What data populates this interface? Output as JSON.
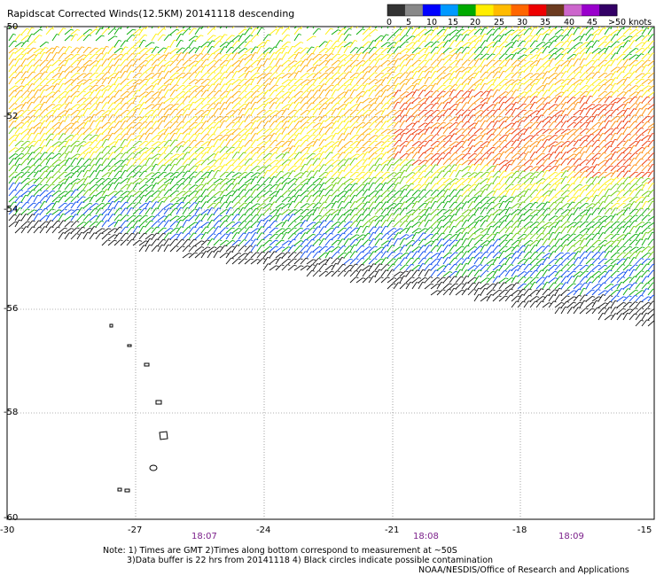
{
  "title": "Rapidscat Corrected Winds(12.5KM) 20141118 descending",
  "scale": {
    "labels": [
      "0",
      "5",
      "10",
      "15",
      "20",
      "25",
      "30",
      "35",
      "40",
      "45",
      ">50 knots"
    ],
    "colors": [
      "#333333",
      "#888888",
      "#0000ff",
      "#0099ff",
      "#00aa00",
      "#ffee00",
      "#ffbb00",
      "#ff6600",
      "#ee0000",
      "#6b3a1f",
      "#cc66cc",
      "#9900cc",
      "#330066"
    ]
  },
  "axes": {
    "lon_labels": [
      "-30",
      "-27",
      "-24",
      "-21",
      "-18",
      "-15"
    ],
    "lat_labels": [
      "-50",
      "-52",
      "-54",
      "-56",
      "-58",
      "-60"
    ]
  },
  "times": [
    "18:07",
    "18:08",
    "18:09"
  ],
  "notes": {
    "line1": "Note: 1) Times are GMT 2)Times along bottom correspond to measurement at ~50S",
    "line2": "3)Data buffer is 22 hrs from 20141118 4) Black circles indicate possible contamination",
    "line3": "NOAA/NESDIS/Office of Research and Applications"
  }
}
